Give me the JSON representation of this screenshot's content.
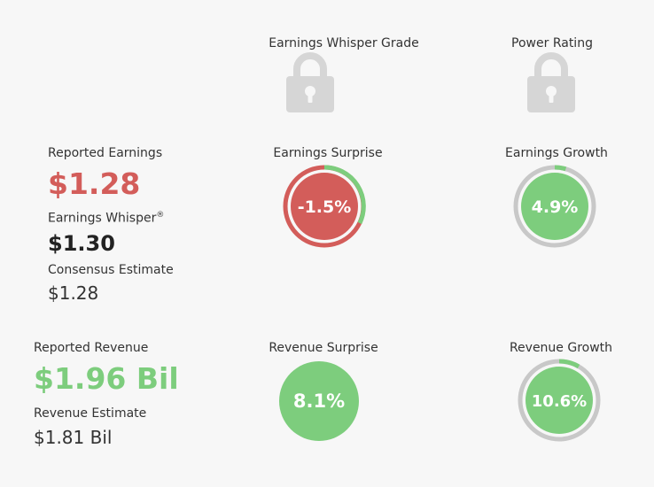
{
  "grades": {
    "whisper_grade_label": "Earnings Whisper Grade",
    "power_rating_label": "Power Rating",
    "lock_icon": "lock-icon"
  },
  "earnings": {
    "reported_label": "Reported Earnings",
    "reported_value": "$1.28",
    "whisper_label": "Earnings Whisper",
    "whisper_mark": "®",
    "whisper_value": "$1.30",
    "consensus_label": "Consensus Estimate",
    "consensus_value": "$1.28",
    "surprise_label": "Earnings Surprise",
    "surprise_value": "-1.5%",
    "surprise_pct": -1.5,
    "growth_label": "Earnings Growth",
    "growth_value": "4.9%",
    "growth_pct": 4.9
  },
  "revenue": {
    "reported_label": "Reported Revenue",
    "reported_value": "$1.96 Bil",
    "estimate_label": "Revenue Estimate",
    "estimate_value": "$1.81 Bil",
    "surprise_label": "Revenue Surprise",
    "surprise_value": "8.1%",
    "surprise_pct": 8.1,
    "growth_label": "Revenue Growth",
    "growth_value": "10.6%",
    "growth_pct": 10.6
  },
  "colors": {
    "negative": "#d35d5a",
    "positive": "#7dcd7d",
    "track": "#c8c8c8",
    "lock": "#d6d6d6"
  }
}
